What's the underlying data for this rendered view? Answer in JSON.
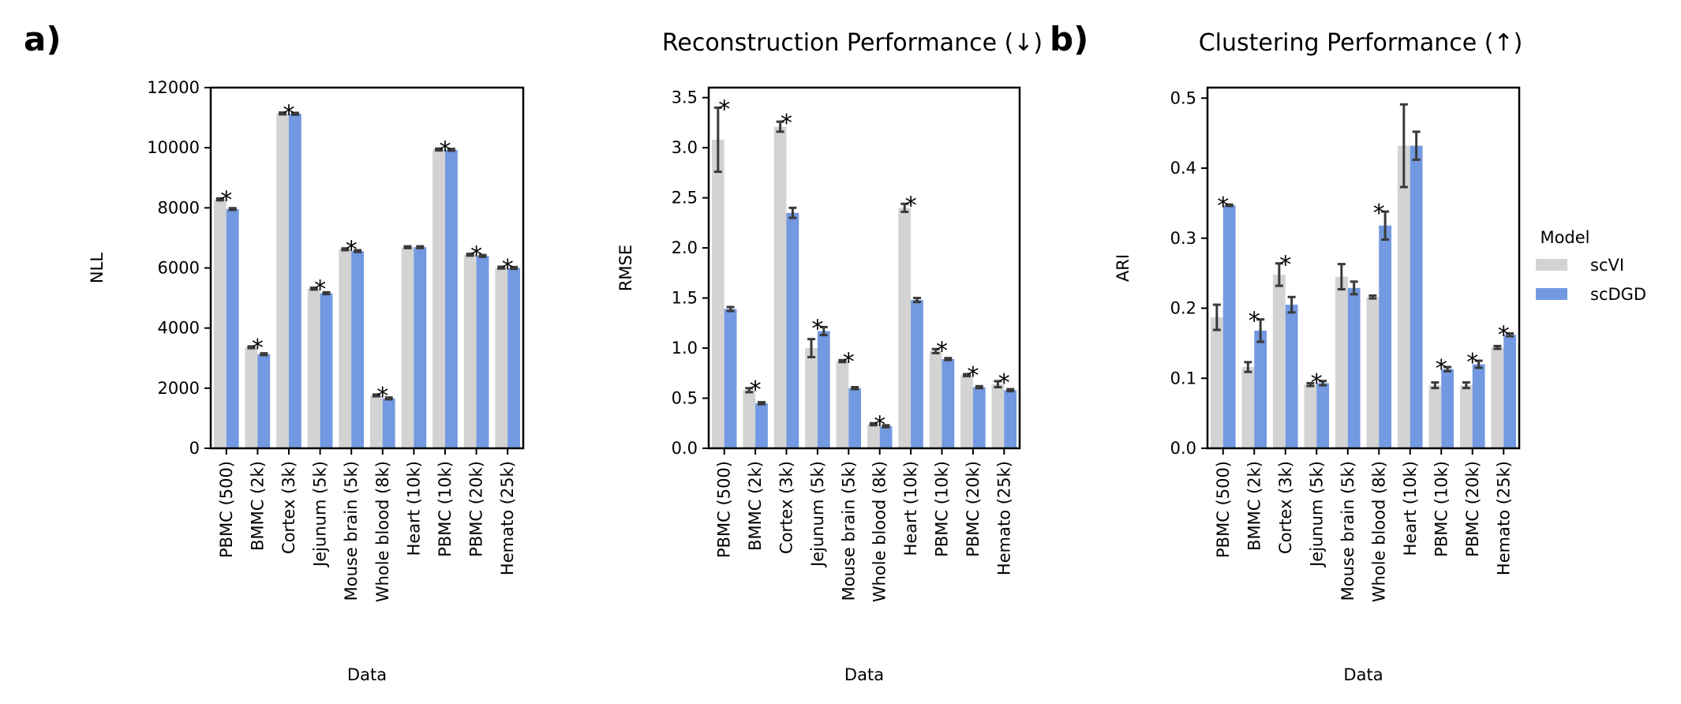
{
  "figure": {
    "panel_a_label": "a)",
    "panel_b_label": "b)",
    "reconstruction_title": "Reconstruction Performance (↓)",
    "clustering_title": "Clustering Performance (↑)"
  },
  "legend": {
    "title": "Model",
    "entries": [
      {
        "name": "scVI",
        "color": "#d3d3d3"
      },
      {
        "name": "scDGD",
        "color": "#7299e1"
      }
    ]
  },
  "colors": {
    "scVI": "#d3d3d3",
    "scDGD": "#7299e1",
    "error_bar": "#3a3a3a",
    "axis": "#000000"
  },
  "chart_data": [
    {
      "type": "bar",
      "title": "",
      "xlabel": "Data",
      "ylabel": "NLL",
      "ylim": [
        0,
        12000
      ],
      "yticks": [
        0,
        2000,
        4000,
        6000,
        8000,
        10000,
        12000
      ],
      "categories": [
        "PBMC (500)",
        "BMMC (2k)",
        "Cortex (3k)",
        "Jejunum (5k)",
        "Mouse brain (5k)",
        "Whole blood (8k)",
        "Heart (10k)",
        "PBMC (10k)",
        "PBMC (20k)",
        "Hemato (25k)"
      ],
      "series": [
        {
          "name": "scVI",
          "values": [
            8280,
            3360,
            11140,
            5310,
            6620,
            1760,
            6690,
            9940,
            6440,
            6010
          ],
          "errors": [
            30,
            30,
            30,
            30,
            30,
            30,
            30,
            30,
            30,
            30
          ]
        },
        {
          "name": "scDGD",
          "values": [
            7960,
            3130,
            11130,
            5160,
            6560,
            1660,
            6690,
            9930,
            6400,
            6000
          ],
          "errors": [
            30,
            30,
            30,
            30,
            30,
            30,
            30,
            30,
            30,
            30
          ]
        }
      ],
      "significance": [
        "*",
        "*",
        "*",
        "*",
        "*",
        "*",
        "",
        "*",
        "*",
        "*"
      ]
    },
    {
      "type": "bar",
      "title": "",
      "xlabel": "Data",
      "ylabel": "RMSE",
      "ylim": [
        0,
        3.6
      ],
      "yticks": [
        "0.0",
        "0.5",
        "1.0",
        "1.5",
        "2.0",
        "2.5",
        "3.0",
        "3.5"
      ],
      "categories": [
        "PBMC (500)",
        "BMMC (2k)",
        "Cortex (3k)",
        "Jejunum (5k)",
        "Mouse brain (5k)",
        "Whole blood (8k)",
        "Heart (10k)",
        "PBMC (10k)",
        "PBMC (20k)",
        "Hemato (25k)"
      ],
      "series": [
        {
          "name": "scVI",
          "values": [
            3.08,
            0.58,
            3.21,
            1.0,
            0.87,
            0.24,
            2.4,
            0.97,
            0.73,
            0.64
          ],
          "errors": [
            0.32,
            0.02,
            0.05,
            0.09,
            0.01,
            0.01,
            0.04,
            0.02,
            0.01,
            0.03
          ]
        },
        {
          "name": "scDGD",
          "values": [
            1.39,
            0.45,
            2.35,
            1.17,
            0.6,
            0.22,
            1.48,
            0.89,
            0.61,
            0.58
          ],
          "errors": [
            0.02,
            0.01,
            0.05,
            0.04,
            0.01,
            0.01,
            0.02,
            0.01,
            0.01,
            0.01
          ]
        }
      ],
      "significance": [
        "*",
        "*",
        "*",
        "*",
        "*",
        "*",
        "*",
        "*",
        "*",
        "*"
      ]
    },
    {
      "type": "bar",
      "title": "",
      "xlabel": "Data",
      "ylabel": "ARI",
      "ylim": [
        0,
        0.515
      ],
      "yticks": [
        "0.0",
        "0.1",
        "0.2",
        "0.3",
        "0.4",
        "0.5"
      ],
      "categories": [
        "PBMC (500)",
        "BMMC (2k)",
        "Cortex (3k)",
        "Jejunum (5k)",
        "Mouse brain (5k)",
        "Whole blood (8k)",
        "Heart (10k)",
        "PBMC (10k)",
        "PBMC (20k)",
        "Hemato (25k)"
      ],
      "series": [
        {
          "name": "scVI",
          "values": [
            0.187,
            0.116,
            0.248,
            0.091,
            0.245,
            0.216,
            0.432,
            0.09,
            0.09,
            0.144
          ],
          "errors": [
            0.018,
            0.007,
            0.016,
            0.002,
            0.018,
            0.002,
            0.059,
            0.004,
            0.004,
            0.002
          ]
        },
        {
          "name": "scDGD",
          "values": [
            0.347,
            0.168,
            0.205,
            0.093,
            0.229,
            0.318,
            0.432,
            0.113,
            0.12,
            0.162
          ],
          "errors": [
            0.001,
            0.016,
            0.011,
            0.003,
            0.009,
            0.02,
            0.02,
            0.003,
            0.005,
            0.002
          ]
        }
      ],
      "significance": [
        "*",
        "*",
        "*",
        "*",
        "",
        "*",
        "",
        "*",
        "*",
        "*"
      ]
    }
  ]
}
